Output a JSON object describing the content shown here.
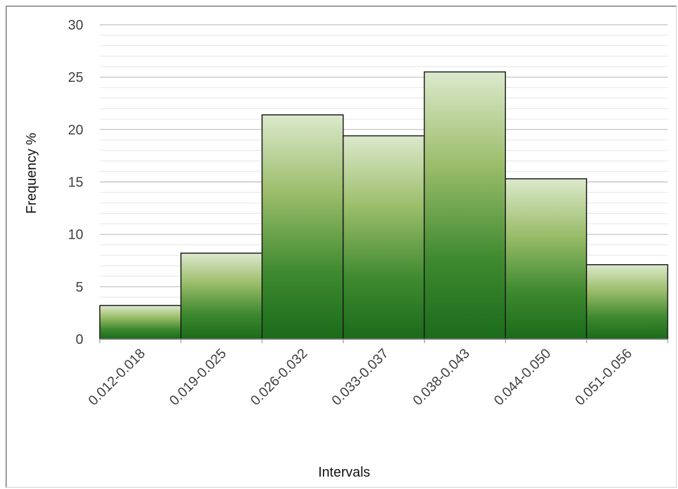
{
  "chart_data": {
    "type": "bar",
    "title": "",
    "xlabel": "Intervals",
    "ylabel": "Frequency %",
    "categories": [
      "0.012-0.018",
      "0.019-0.025",
      "0.026-0.032",
      "0.033-0.037",
      "0.038-0.043",
      "0.044-0.050",
      "0.051-0.056"
    ],
    "values": [
      3.2,
      8.2,
      21.4,
      19.4,
      25.5,
      15.3,
      7.1
    ],
    "ylim": [
      0,
      30
    ],
    "yticks": [
      0,
      5,
      10,
      15,
      20,
      25,
      30
    ],
    "grid": true,
    "legend": "none",
    "bar_gradient": [
      "#dce9cc",
      "#9bbd6a",
      "#3f8a30",
      "#1a6b1a"
    ],
    "bar_outline": "#1a1a1a"
  }
}
